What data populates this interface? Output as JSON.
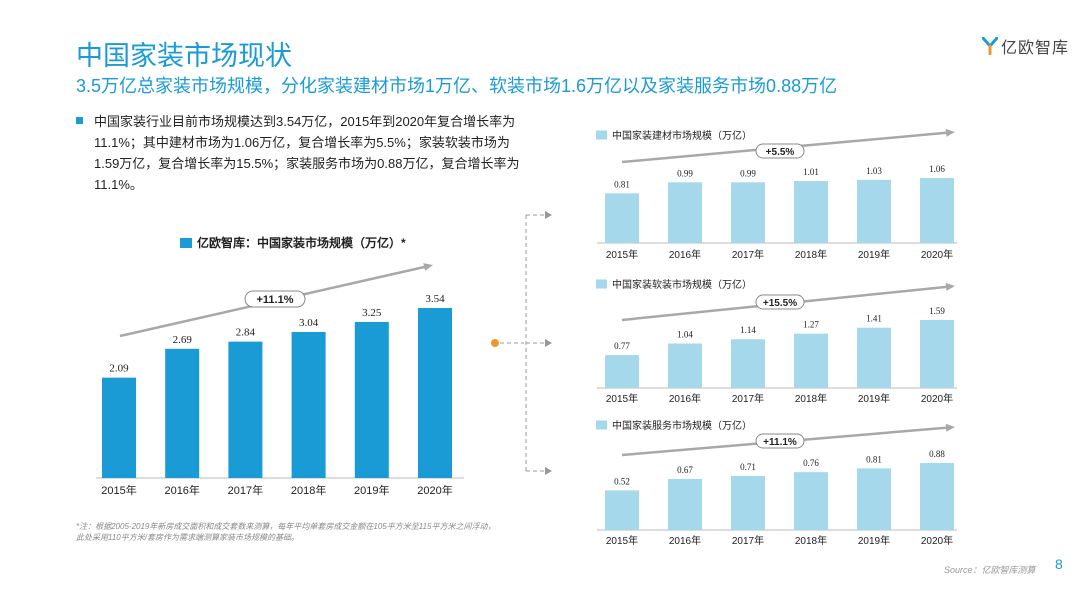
{
  "header": {
    "title": "中国家装市场现状",
    "subtitle": "3.5万亿总家装市场规模，分化家装建材市场1万亿、软装市场1.6万亿以及家装服务市场0.88万亿"
  },
  "logo": {
    "text": "亿欧智库"
  },
  "bullet": "中国家装行业目前市场规模达到3.54万亿，2015年到2020年复合增长率为11.1%；其中建材市场为1.06万亿，复合增长率为5.5%；家装软装市场为1.59万亿，复合增长率为15.5%；家装服务市场为0.88万亿，复合增长率为11.1%。",
  "footnote": "*注：根据2005-2019年新房成交面积和成交套数来测算，每年平均单套房成交金额在105平方米至115平方米之间浮动，此处采用110平方米/套房作为需求端测算家装市场规模的基础。",
  "source": "Source：亿欧智库测算",
  "page_number": "8",
  "colors": {
    "bar_main": "#1a9bd6",
    "bar_small": "#a6d8ec",
    "accent_title": "#1a9bd6",
    "connector_dot": "#f0962e",
    "arrow": "#a8a8a8"
  },
  "chart_data": [
    {
      "type": "bar",
      "title": "亿欧智库：中国家装市场规模（万亿）*",
      "categories": [
        "2015年",
        "2016年",
        "2017年",
        "2018年",
        "2019年",
        "2020年"
      ],
      "values": [
        2.09,
        2.69,
        2.84,
        3.04,
        3.25,
        3.54
      ],
      "growth_label": "+11.1%",
      "legend": "top-left",
      "grid": false
    },
    {
      "type": "bar",
      "title": "中国家装建材市场规模（万亿）",
      "categories": [
        "2015年",
        "2016年",
        "2017年",
        "2018年",
        "2019年",
        "2020年"
      ],
      "values": [
        0.81,
        0.99,
        0.99,
        1.01,
        1.03,
        1.06
      ],
      "growth_label": "+5.5%",
      "legend": "top-left",
      "grid": false
    },
    {
      "type": "bar",
      "title": "中国家装软装市场规模（万亿）",
      "categories": [
        "2015年",
        "2016年",
        "2017年",
        "2018年",
        "2019年",
        "2020年"
      ],
      "values": [
        0.77,
        1.04,
        1.14,
        1.27,
        1.41,
        1.59
      ],
      "growth_label": "+15.5%",
      "legend": "top-left",
      "grid": false
    },
    {
      "type": "bar",
      "title": "中国家装服务市场规模（万亿）",
      "categories": [
        "2015年",
        "2016年",
        "2017年",
        "2018年",
        "2019年",
        "2020年"
      ],
      "values": [
        0.52,
        0.67,
        0.71,
        0.76,
        0.81,
        0.88
      ],
      "growth_label": "+11.1%",
      "legend": "top-left",
      "grid": false
    }
  ]
}
